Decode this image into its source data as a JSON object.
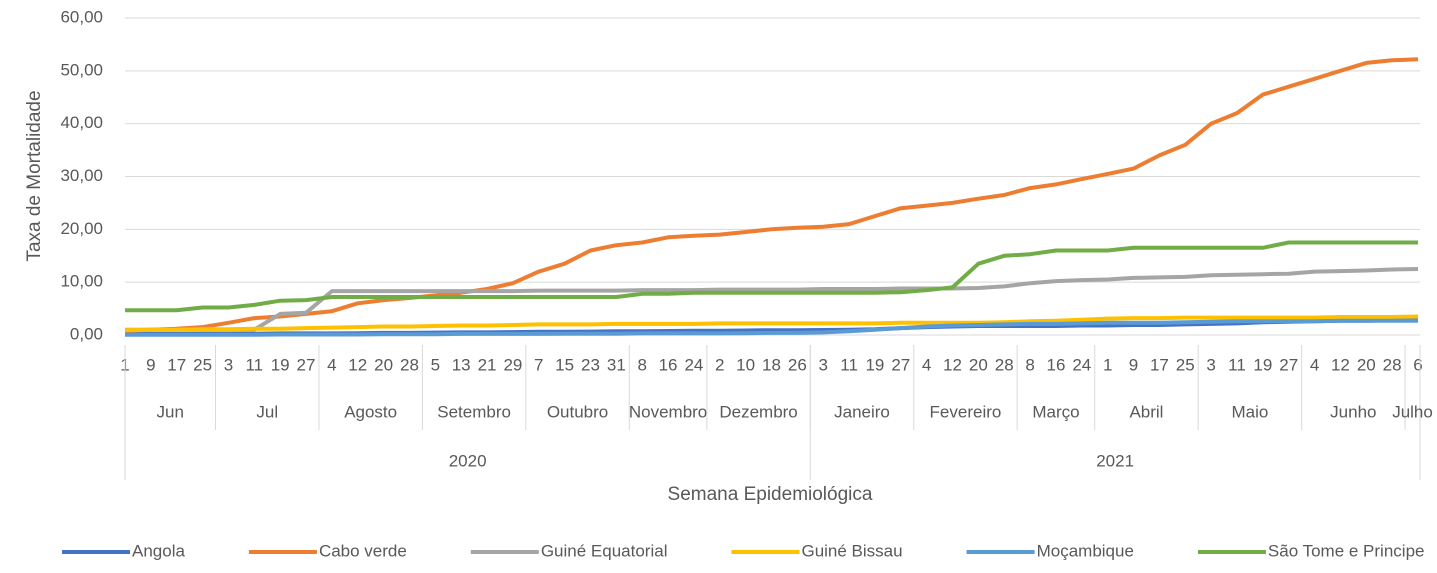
{
  "chart_data": {
    "type": "line",
    "y_label": "Taxa de Mortalidade",
    "ylim": [
      0,
      60
    ],
    "yticks": [
      {
        "value": 0,
        "label": "0,00"
      },
      {
        "value": 10,
        "label": "10,00"
      },
      {
        "value": 20,
        "label": "20,00"
      },
      {
        "value": 30,
        "label": "30,00"
      },
      {
        "value": 40,
        "label": "40,00"
      },
      {
        "value": 50,
        "label": "50,00"
      },
      {
        "value": 60,
        "label": "60,00"
      }
    ],
    "grid": true,
    "legend": "bottom",
    "x_axis": {
      "title": "Semana Epidemiológica",
      "years": [
        {
          "label": "2020",
          "months": [
            {
              "label": "Jun",
              "days": [
                "1",
                "9",
                "17",
                "25"
              ]
            },
            {
              "label": "Jul",
              "days": [
                "3",
                "11",
                "19",
                "27"
              ]
            },
            {
              "label": "Agosto",
              "days": [
                "4",
                "12",
                "20",
                "28"
              ]
            },
            {
              "label": "Setembro",
              "days": [
                "5",
                "13",
                "21",
                "29"
              ]
            },
            {
              "label": "Outubro",
              "days": [
                "7",
                "15",
                "23",
                "31"
              ]
            },
            {
              "label": "Novembro",
              "days": [
                "8",
                "16",
                "24"
              ]
            },
            {
              "label": "Dezembro",
              "days": [
                "2",
                "10",
                "18",
                "26"
              ]
            }
          ]
        },
        {
          "label": "2021",
          "months": [
            {
              "label": "Janeiro",
              "days": [
                "3",
                "11",
                "19",
                "27"
              ]
            },
            {
              "label": "Fevereiro",
              "days": [
                "4",
                "12",
                "20",
                "28"
              ]
            },
            {
              "label": "Março",
              "days": [
                "8",
                "16",
                "24"
              ]
            },
            {
              "label": "Abril",
              "days": [
                "1",
                "9",
                "17",
                "25"
              ]
            },
            {
              "label": "Maio",
              "days": [
                "3",
                "11",
                "19",
                "27"
              ]
            },
            {
              "label": "Junho",
              "days": [
                "4",
                "12",
                "20",
                "28"
              ]
            },
            {
              "label": "Julho",
              "days": [
                "6"
              ]
            }
          ]
        }
      ]
    },
    "series": [
      {
        "name": "Angola",
        "color": "#4472c4",
        "values": [
          0.2,
          0.2,
          0.2,
          0.2,
          0.2,
          0.25,
          0.3,
          0.3,
          0.3,
          0.35,
          0.4,
          0.4,
          0.45,
          0.5,
          0.5,
          0.55,
          0.6,
          0.6,
          0.65,
          0.7,
          0.7,
          0.75,
          0.8,
          0.8,
          0.85,
          0.9,
          0.9,
          0.95,
          1.0,
          1.1,
          1.3,
          1.5,
          1.6,
          1.7,
          1.7,
          1.7,
          1.7,
          1.8,
          1.8,
          1.9,
          1.9,
          2.0,
          2.1,
          2.2,
          2.4,
          2.5,
          2.6,
          2.7,
          2.7,
          2.8,
          2.9
        ]
      },
      {
        "name": "Cabo verde",
        "color": "#ed7d31",
        "values": [
          0.8,
          1.0,
          1.2,
          1.5,
          2.3,
          3.2,
          3.5,
          4.0,
          4.5,
          6.0,
          6.6,
          7.0,
          7.5,
          8.0,
          8.7,
          9.8,
          12.0,
          13.5,
          16.0,
          17.0,
          17.5,
          18.5,
          18.8,
          19.0,
          19.5,
          20.0,
          20.3,
          20.5,
          21.0,
          22.5,
          24.0,
          24.5,
          25.0,
          25.8,
          26.5,
          27.8,
          28.5,
          29.5,
          30.5,
          31.5,
          34.0,
          36.0,
          40.0,
          42.0,
          45.5,
          47.0,
          48.5,
          50.0,
          51.5,
          52.0,
          52.2
        ]
      },
      {
        "name": "Guiné Equatorial",
        "color": "#a5a5a5",
        "values": [
          1.0,
          1.0,
          1.0,
          1.0,
          1.0,
          1.0,
          4.0,
          4.2,
          8.3,
          8.3,
          8.3,
          8.3,
          8.3,
          8.3,
          8.3,
          8.3,
          8.4,
          8.4,
          8.4,
          8.4,
          8.5,
          8.5,
          8.5,
          8.6,
          8.6,
          8.6,
          8.6,
          8.7,
          8.7,
          8.7,
          8.8,
          8.8,
          8.8,
          8.9,
          9.2,
          9.8,
          10.2,
          10.4,
          10.5,
          10.8,
          10.9,
          11.0,
          11.3,
          11.4,
          11.5,
          11.6,
          12.0,
          12.1,
          12.2,
          12.4,
          12.5
        ]
      },
      {
        "name": "Guiné Bissau",
        "color": "#ffc000",
        "values": [
          0.9,
          1.0,
          1.0,
          1.1,
          1.1,
          1.2,
          1.2,
          1.3,
          1.4,
          1.5,
          1.6,
          1.6,
          1.7,
          1.8,
          1.8,
          1.9,
          2.0,
          2.0,
          2.0,
          2.1,
          2.1,
          2.1,
          2.1,
          2.2,
          2.2,
          2.2,
          2.2,
          2.2,
          2.2,
          2.2,
          2.3,
          2.3,
          2.3,
          2.3,
          2.4,
          2.6,
          2.7,
          2.9,
          3.1,
          3.2,
          3.2,
          3.3,
          3.3,
          3.3,
          3.3,
          3.3,
          3.3,
          3.4,
          3.4,
          3.4,
          3.5
        ]
      },
      {
        "name": "Moçambique",
        "color": "#5b9bd5",
        "values": [
          0.05,
          0.05,
          0.05,
          0.05,
          0.05,
          0.05,
          0.1,
          0.1,
          0.1,
          0.1,
          0.15,
          0.15,
          0.15,
          0.2,
          0.2,
          0.2,
          0.2,
          0.25,
          0.25,
          0.25,
          0.3,
          0.3,
          0.3,
          0.3,
          0.35,
          0.4,
          0.4,
          0.5,
          0.7,
          1.0,
          1.3,
          1.6,
          1.8,
          1.9,
          2.0,
          2.1,
          2.1,
          2.2,
          2.3,
          2.3,
          2.3,
          2.4,
          2.5,
          2.6,
          2.6,
          2.6,
          2.6,
          2.7,
          2.7,
          2.7,
          2.7
        ]
      },
      {
        "name": "São Tome e Principe",
        "color": "#70ad47",
        "values": [
          4.7,
          4.7,
          4.7,
          5.2,
          5.2,
          5.7,
          6.5,
          6.6,
          7.2,
          7.2,
          7.2,
          7.2,
          7.2,
          7.2,
          7.2,
          7.2,
          7.2,
          7.2,
          7.2,
          7.2,
          7.8,
          7.8,
          8.0,
          8.0,
          8.0,
          8.0,
          8.0,
          8.0,
          8.0,
          8.0,
          8.1,
          8.5,
          9.0,
          13.5,
          15.0,
          15.3,
          16.0,
          16.0,
          16.0,
          16.5,
          16.5,
          16.5,
          16.5,
          16.5,
          16.5,
          17.5,
          17.5,
          17.5,
          17.5,
          17.5,
          17.5
        ]
      }
    ]
  }
}
